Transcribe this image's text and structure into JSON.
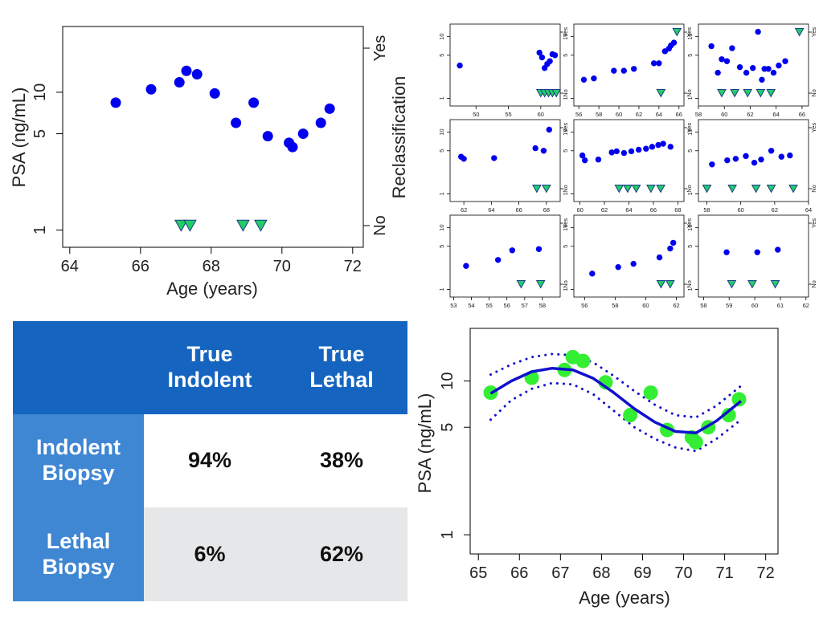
{
  "colors": {
    "point": "#0000ee",
    "marker_fill": "#22cc66",
    "marker_edge": "#1a3a8a",
    "fit_point": "#33ee33",
    "fit_line": "#1111cc",
    "table_header": "#1565c0",
    "table_row_label": "#3f87d3",
    "table_row_alt": "#e6e7e9"
  },
  "chart_data": [
    {
      "id": "main-scatter",
      "type": "scatter",
      "xlabel": "Age (years)",
      "ylabel": "PSA (ng/mL)",
      "ylabel_right": "Reclassification",
      "right_ticks": [
        "Yes",
        "No"
      ],
      "y_scale": "log",
      "xlim": [
        63.8,
        72.3
      ],
      "ylim": [
        0.75,
        30
      ],
      "x_ticks": [
        "64",
        "66",
        "68",
        "70",
        "72"
      ],
      "y_ticks": [
        "1",
        "5",
        "10"
      ],
      "grid": false,
      "series": [
        {
          "marker": "circle",
          "x": [
            65.3,
            66.3,
            67.1,
            67.3,
            67.6,
            68.1,
            68.7,
            69.2,
            69.6,
            70.2,
            70.3,
            70.6,
            71.1,
            71.35
          ],
          "y": [
            8.4,
            10.5,
            11.8,
            14.3,
            13.5,
            9.8,
            6.0,
            8.4,
            4.8,
            4.3,
            4.0,
            5.0,
            6.0,
            7.6
          ]
        },
        {
          "marker": "triangle-down",
          "level": "No",
          "x": [
            67.15,
            67.4,
            68.9,
            69.4
          ]
        }
      ]
    },
    {
      "id": "small-multiples",
      "type": "scatter",
      "y_scale": "log",
      "grid": false,
      "y_ticks": [
        "1",
        "5",
        "10"
      ],
      "right_ticks": [
        "Yes",
        "No"
      ],
      "panels": [
        {
          "xlim": [
            46,
            63
          ],
          "x_ticks": [
            "50",
            "55",
            "60"
          ],
          "x": [
            47.5,
            59.8,
            60.2,
            60.6,
            61.0,
            61.4,
            61.8,
            62.2
          ],
          "y": [
            3.4,
            5.5,
            4.6,
            3.1,
            3.6,
            4.0,
            5.2,
            5.0
          ],
          "no_x": [
            60.0,
            60.6,
            61.2,
            61.8,
            62.4
          ],
          "yes_x": []
        },
        {
          "xlim": [
            55.5,
            66.5
          ],
          "x_ticks": [
            "56",
            "58",
            "60",
            "62",
            "64",
            "66"
          ],
          "x": [
            56.5,
            57.5,
            59.5,
            60.5,
            61.5,
            63.5,
            64.0,
            64.6,
            65.0,
            65.2,
            65.5
          ],
          "y": [
            2.0,
            2.1,
            2.8,
            2.8,
            3.0,
            3.7,
            3.7,
            5.8,
            6.4,
            7.2,
            8.0
          ],
          "no_x": [
            64.2
          ],
          "yes_x": [
            65.8
          ]
        },
        {
          "xlim": [
            58,
            66.5
          ],
          "x_ticks": [
            "58",
            "60",
            "62",
            "64",
            "66"
          ],
          "x": [
            59.0,
            59.5,
            59.8,
            60.2,
            60.6,
            61.2,
            61.7,
            62.2,
            62.6,
            62.9,
            63.1,
            63.4,
            63.8,
            64.2,
            64.7
          ],
          "y": [
            7.0,
            2.6,
            4.3,
            4.0,
            6.5,
            3.2,
            2.6,
            3.1,
            12.0,
            2.0,
            3.0,
            3.0,
            2.6,
            3.4,
            4.0
          ],
          "no_x": [
            59.8,
            60.8,
            61.8,
            62.8,
            63.6
          ],
          "yes_x": [
            65.8
          ]
        },
        {
          "xlim": [
            61,
            69
          ],
          "x_ticks": [
            "62",
            "64",
            "66",
            "68"
          ],
          "x": [
            61.8,
            62.0,
            64.2,
            67.2,
            67.8,
            68.2
          ],
          "y": [
            4.0,
            3.7,
            3.8,
            5.5,
            5.0,
            11.0
          ],
          "no_x": [
            67.3,
            68.0
          ],
          "yes_x": []
        },
        {
          "xlim": [
            59.5,
            68.5
          ],
          "x_ticks": [
            "60",
            "62",
            "64",
            "66",
            "68"
          ],
          "x": [
            60.2,
            60.4,
            61.5,
            62.6,
            63.0,
            63.6,
            64.2,
            64.8,
            65.4,
            65.9,
            66.4,
            66.8,
            67.4
          ],
          "y": [
            4.2,
            3.5,
            3.6,
            4.7,
            4.9,
            4.6,
            4.9,
            5.2,
            5.4,
            5.8,
            6.2,
            6.5,
            5.8
          ],
          "no_x": [
            63.2,
            63.9,
            64.6,
            65.8,
            66.6
          ],
          "yes_x": []
        },
        {
          "xlim": [
            57.5,
            64
          ],
          "x_ticks": [
            "58",
            "60",
            "62",
            "64"
          ],
          "x": [
            58.3,
            59.2,
            59.7,
            60.3,
            60.8,
            61.2,
            61.8,
            62.4,
            62.9
          ],
          "y": [
            3.0,
            3.5,
            3.7,
            4.1,
            3.2,
            3.6,
            5.0,
            4.0,
            4.2
          ],
          "no_x": [
            58.0,
            59.5,
            60.9,
            61.8,
            63.1
          ],
          "yes_x": []
        },
        {
          "xlim": [
            52.8,
            59
          ],
          "x_ticks": [
            "53",
            "54",
            "55",
            "56",
            "57",
            "58"
          ],
          "x": [
            53.7,
            55.5,
            56.3,
            57.8
          ],
          "y": [
            2.4,
            3.0,
            4.3,
            4.5
          ],
          "no_x": [
            56.8,
            57.9
          ],
          "yes_x": []
        },
        {
          "xlim": [
            55.3,
            62.5
          ],
          "x_ticks": [
            "56",
            "58",
            "60",
            "62"
          ],
          "x": [
            56.5,
            58.2,
            59.2,
            60.9,
            61.6,
            61.8
          ],
          "y": [
            1.8,
            2.3,
            2.6,
            3.3,
            4.6,
            5.7
          ],
          "no_x": [
            61.0,
            61.6
          ],
          "yes_x": []
        },
        {
          "xlim": [
            57.8,
            62.1
          ],
          "x_ticks": [
            "58",
            "59",
            "60",
            "61",
            "62"
          ],
          "x": [
            58.9,
            60.1,
            60.9
          ],
          "y": [
            4.0,
            4.0,
            4.4
          ],
          "no_x": [
            59.1,
            59.9,
            60.8
          ],
          "yes_x": []
        }
      ]
    },
    {
      "id": "fit-plot",
      "type": "line",
      "xlabel": "Age (years)",
      "ylabel": "PSA (ng/mL)",
      "y_scale": "log",
      "xlim": [
        64.8,
        72.3
      ],
      "ylim": [
        0.75,
        22
      ],
      "x_ticks": [
        "65",
        "66",
        "67",
        "68",
        "69",
        "70",
        "71",
        "72"
      ],
      "y_ticks": [
        "1",
        "5",
        "10"
      ],
      "grid": false,
      "points": {
        "x": [
          65.3,
          66.3,
          67.1,
          67.3,
          67.55,
          68.1,
          68.7,
          69.2,
          69.6,
          70.2,
          70.3,
          70.6,
          71.1,
          71.35
        ],
        "y": [
          8.4,
          10.5,
          11.8,
          14.3,
          13.5,
          9.8,
          6.0,
          8.4,
          4.8,
          4.3,
          4.0,
          5.0,
          6.0,
          7.6
        ]
      },
      "fit": {
        "x": [
          65.3,
          65.8,
          66.3,
          66.8,
          67.3,
          67.8,
          68.3,
          68.8,
          69.3,
          69.8,
          70.3,
          70.8,
          71.4
        ],
        "y": [
          8.3,
          10.0,
          11.5,
          12.1,
          11.8,
          10.4,
          8.4,
          6.6,
          5.4,
          4.7,
          4.6,
          5.5,
          7.4
        ]
      },
      "upper": {
        "x": [
          65.3,
          65.8,
          66.3,
          66.8,
          67.3,
          67.8,
          68.3,
          68.8,
          69.3,
          69.8,
          70.3,
          70.8,
          71.4
        ],
        "y": [
          11.0,
          12.8,
          14.3,
          15.0,
          14.7,
          13.2,
          10.8,
          8.6,
          7.0,
          6.0,
          5.8,
          6.9,
          9.3
        ]
      },
      "lower": {
        "x": [
          65.3,
          65.8,
          66.3,
          66.8,
          67.3,
          67.8,
          68.3,
          68.8,
          69.3,
          69.8,
          70.3,
          70.8,
          71.4
        ],
        "y": [
          5.6,
          7.5,
          8.9,
          9.7,
          9.5,
          8.2,
          6.4,
          5.0,
          4.2,
          3.7,
          3.5,
          4.2,
          5.6
        ]
      }
    }
  ],
  "table": {
    "header": [
      "",
      "True\nIndolent",
      "True\nLethal"
    ],
    "rows": [
      {
        "label": "Indolent\nBiopsy",
        "values": [
          "94%",
          "38%"
        ]
      },
      {
        "label": "Lethal\nBiopsy",
        "values": [
          "6%",
          "62%"
        ]
      }
    ]
  }
}
